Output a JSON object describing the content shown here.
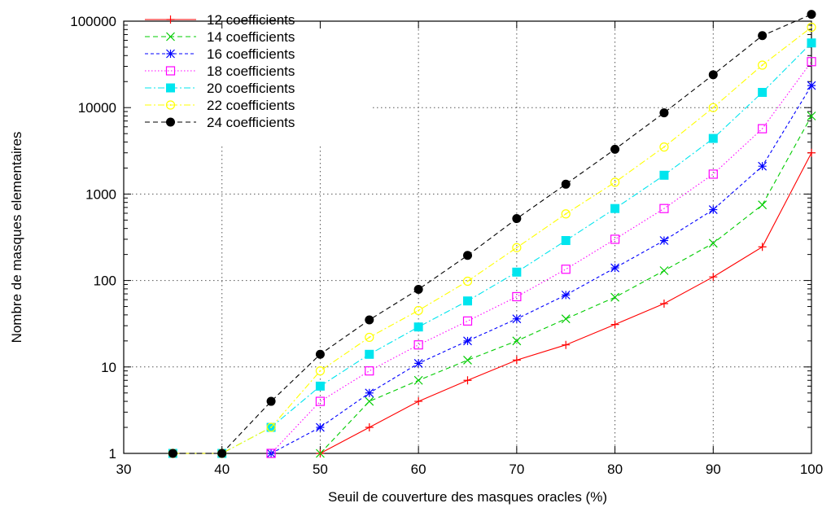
{
  "chart_data": {
    "type": "line",
    "title": "",
    "xlabel": "Seuil de couverture des masques oracles (%)",
    "ylabel": "Nombre de masques elementaires",
    "x_scale": "linear",
    "y_scale": "log",
    "xlim": [
      30,
      100
    ],
    "ylim": [
      1,
      100000
    ],
    "x_ticks": [
      30,
      40,
      50,
      60,
      70,
      80,
      90,
      100
    ],
    "y_ticks": [
      1,
      10,
      100,
      1000,
      10000,
      100000
    ],
    "x_tick_labels": [
      "30",
      "40",
      "50",
      "60",
      "70",
      "80",
      "90",
      "100"
    ],
    "y_tick_labels": [
      "1",
      "10",
      "100",
      "1000",
      "10000",
      "100000"
    ],
    "grid": "dotted",
    "legend_position": "top-left",
    "series": [
      {
        "name": "12 coefficients",
        "color": "#ff0000",
        "dash": "solid",
        "marker": "plus",
        "x": [
          50,
          55,
          60,
          65,
          70,
          75,
          80,
          85,
          90,
          95,
          100
        ],
        "y": [
          1,
          2,
          4,
          7,
          12,
          18,
          31,
          54,
          110,
          245,
          3000
        ]
      },
      {
        "name": "14 coefficients",
        "color": "#00cc00",
        "dash": "dashed",
        "marker": "cross",
        "x": [
          50,
          55,
          60,
          65,
          70,
          75,
          80,
          85,
          90,
          95,
          100
        ],
        "y": [
          1,
          4,
          7,
          12,
          20,
          36,
          64,
          130,
          270,
          750,
          8000
        ]
      },
      {
        "name": "16 coefficients",
        "color": "#0000ff",
        "dash": "short-dash",
        "marker": "star",
        "x": [
          45,
          50,
          55,
          60,
          65,
          70,
          75,
          80,
          85,
          90,
          95,
          100
        ],
        "y": [
          1,
          2,
          5,
          11,
          20,
          36,
          68,
          140,
          290,
          660,
          2100,
          18000
        ]
      },
      {
        "name": "18 coefficients",
        "color": "#ff00ff",
        "dash": "dotted",
        "marker": "open-square",
        "x": [
          45,
          50,
          55,
          60,
          65,
          70,
          75,
          80,
          85,
          90,
          95,
          100
        ],
        "y": [
          1,
          4,
          9,
          18,
          34,
          65,
          135,
          300,
          680,
          1700,
          5700,
          34000
        ]
      },
      {
        "name": "20 coefficients",
        "color": "#00e5ee",
        "dash": "dash-dot",
        "marker": "filled-square",
        "x": [
          35,
          40,
          45,
          50,
          55,
          60,
          65,
          70,
          75,
          80,
          85,
          90,
          95,
          100
        ],
        "y": [
          1,
          1,
          2,
          6,
          14,
          29,
          58,
          125,
          290,
          680,
          1650,
          4400,
          15000,
          56000
        ]
      },
      {
        "name": "22 coefficients",
        "color": "#ffff00",
        "dash": "dash-dot",
        "marker": "open-circle",
        "x": [
          35,
          40,
          45,
          50,
          55,
          60,
          65,
          70,
          75,
          80,
          85,
          90,
          95,
          100
        ],
        "y": [
          1,
          1,
          2,
          9,
          22,
          45,
          98,
          240,
          590,
          1370,
          3500,
          10000,
          31000,
          85000
        ]
      },
      {
        "name": "24 coefficients",
        "color": "#000000",
        "dash": "dashed",
        "marker": "filled-circle",
        "x": [
          35,
          40,
          45,
          50,
          55,
          60,
          65,
          70,
          75,
          80,
          85,
          90,
          95,
          100
        ],
        "y": [
          1,
          1,
          4,
          14,
          35,
          79,
          195,
          520,
          1300,
          3300,
          8700,
          24000,
          68000,
          120000
        ]
      }
    ]
  }
}
